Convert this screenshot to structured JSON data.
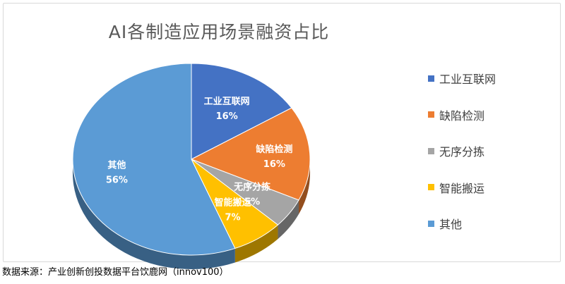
{
  "chart_data": {
    "type": "pie",
    "title": "AI各制造应用场景融资占比",
    "categories": [
      "工业互联网",
      "缺陷检测",
      "无序分拣",
      "智能搬运",
      "其他"
    ],
    "values": [
      16,
      16,
      5,
      7,
      56
    ],
    "percent_labels": [
      "16%",
      "16%",
      "5%",
      "7%",
      "56%"
    ],
    "colors": [
      "#4472c4",
      "#ed7d31",
      "#a5a5a5",
      "#ffc000",
      "#5b9bd5"
    ],
    "legend_position": "right",
    "three_d": true
  },
  "source_note": "数据来源：产业创新创投数据平台饮鹿网（innov100）"
}
